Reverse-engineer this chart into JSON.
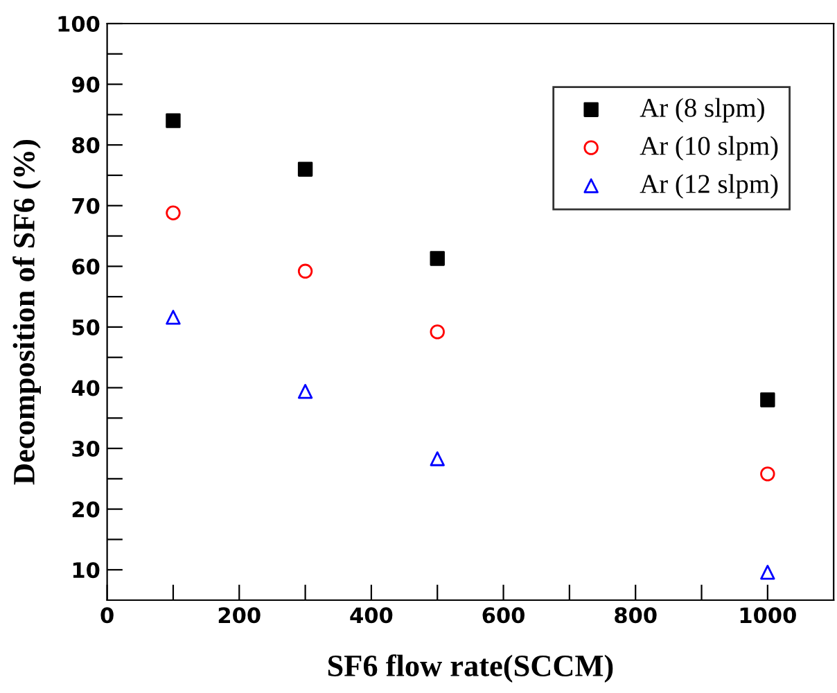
{
  "chart_data": {
    "type": "scatter",
    "xlabel": "SF6 flow rate(SCCM)",
    "ylabel": "Decomposition of SF6 (%)",
    "x": [
      100,
      300,
      500,
      1000
    ],
    "series": [
      {
        "name": "Ar (8 slpm)",
        "color": "#000000",
        "marker": "square",
        "values": [
          84,
          76,
          61.3,
          38
        ]
      },
      {
        "name": "Ar (10 slpm)",
        "color": "#ff0000",
        "marker": "circle",
        "values": [
          68.8,
          59.2,
          49.2,
          25.8
        ]
      },
      {
        "name": "Ar (12 slpm)",
        "color": "#0000ff",
        "marker": "triangle",
        "values": [
          51.6,
          39.4,
          28.3,
          9.6
        ]
      }
    ],
    "xlim": [
      0,
      1100
    ],
    "ylim": [
      5,
      100
    ],
    "xticks": [
      0,
      {
        "value": 100,
        "label": null
      },
      200,
      {
        "value": 300,
        "label": null
      },
      400,
      {
        "value": 500,
        "label": null
      },
      600,
      {
        "value": 700,
        "label": null
      },
      800,
      {
        "value": 900,
        "label": null
      },
      1000
    ],
    "yticks": [
      10,
      {
        "value": 15,
        "label": null
      },
      20,
      {
        "value": 25,
        "label": null
      },
      30,
      {
        "value": 35,
        "label": null
      },
      40,
      {
        "value": 45,
        "label": null
      },
      50,
      {
        "value": 55,
        "label": null
      },
      60,
      {
        "value": 65,
        "label": null
      },
      70,
      {
        "value": 75,
        "label": null
      },
      80,
      {
        "value": 85,
        "label": null
      },
      90,
      {
        "value": 95,
        "label": null
      },
      100
    ],
    "grid": false,
    "legend": "top right"
  }
}
